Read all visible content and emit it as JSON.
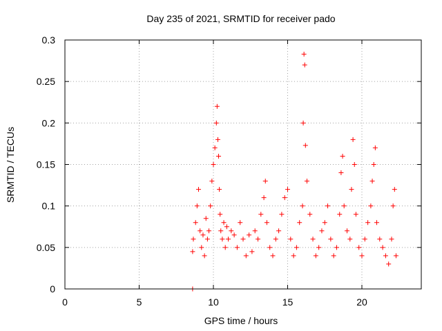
{
  "chart_data": {
    "type": "scatter",
    "title": "Day 235 of 2021, SRMTID for receiver pado",
    "xlabel": "GPS time / hours",
    "ylabel": "SRMTID / TECUs",
    "xlim": [
      0,
      24
    ],
    "ylim": [
      0,
      0.3
    ],
    "xticks": [
      0,
      5,
      10,
      15,
      20
    ],
    "xtick_labels": [
      "0",
      "5",
      "10",
      "15",
      "20"
    ],
    "yticks": [
      0,
      0.05,
      0.1,
      0.15,
      0.2,
      0.25,
      0.3
    ],
    "ytick_labels": [
      "0",
      "0.05",
      "0.1",
      "0.15",
      "0.2",
      "0.25",
      "0.3"
    ],
    "grid": true,
    "marker": "plus",
    "color": "#ff0000",
    "series": [
      {
        "name": "SRMTID",
        "x": [
          8.6,
          8.6,
          8.65,
          8.8,
          8.9,
          9.0,
          9.1,
          9.2,
          9.3,
          9.4,
          9.5,
          9.6,
          9.7,
          9.8,
          9.9,
          10.0,
          10.1,
          10.2,
          10.25,
          10.3,
          10.35,
          10.4,
          10.45,
          10.5,
          10.6,
          10.7,
          10.8,
          10.9,
          11.0,
          11.2,
          11.4,
          11.6,
          11.8,
          12.0,
          12.2,
          12.4,
          12.6,
          12.8,
          13.0,
          13.2,
          13.4,
          13.5,
          13.6,
          13.8,
          14.0,
          14.2,
          14.4,
          14.6,
          14.8,
          15.0,
          15.2,
          15.4,
          15.6,
          15.8,
          16.0,
          16.05,
          16.1,
          16.15,
          16.2,
          16.3,
          16.5,
          16.7,
          16.9,
          17.1,
          17.3,
          17.5,
          17.7,
          17.9,
          18.1,
          18.3,
          18.5,
          18.6,
          18.7,
          18.8,
          19.0,
          19.2,
          19.3,
          19.4,
          19.5,
          19.6,
          19.8,
          20.0,
          20.2,
          20.4,
          20.6,
          20.7,
          20.8,
          20.9,
          21.0,
          21.2,
          21.4,
          21.6,
          21.8,
          22.0,
          22.1,
          22.2,
          22.3
        ],
        "y": [
          0.0,
          0.045,
          0.06,
          0.08,
          0.1,
          0.12,
          0.07,
          0.05,
          0.065,
          0.04,
          0.085,
          0.06,
          0.07,
          0.1,
          0.13,
          0.15,
          0.17,
          0.2,
          0.22,
          0.18,
          0.16,
          0.12,
          0.09,
          0.07,
          0.06,
          0.08,
          0.05,
          0.075,
          0.06,
          0.07,
          0.065,
          0.05,
          0.08,
          0.06,
          0.04,
          0.065,
          0.045,
          0.07,
          0.06,
          0.09,
          0.11,
          0.13,
          0.08,
          0.05,
          0.04,
          0.06,
          0.07,
          0.09,
          0.11,
          0.12,
          0.06,
          0.04,
          0.05,
          0.08,
          0.1,
          0.2,
          0.283,
          0.27,
          0.173,
          0.13,
          0.09,
          0.06,
          0.04,
          0.05,
          0.07,
          0.08,
          0.1,
          0.06,
          0.04,
          0.05,
          0.09,
          0.14,
          0.16,
          0.1,
          0.07,
          0.06,
          0.12,
          0.18,
          0.15,
          0.09,
          0.05,
          0.04,
          0.06,
          0.08,
          0.1,
          0.13,
          0.15,
          0.17,
          0.08,
          0.06,
          0.05,
          0.04,
          0.03,
          0.06,
          0.1,
          0.12,
          0.04
        ]
      }
    ]
  }
}
